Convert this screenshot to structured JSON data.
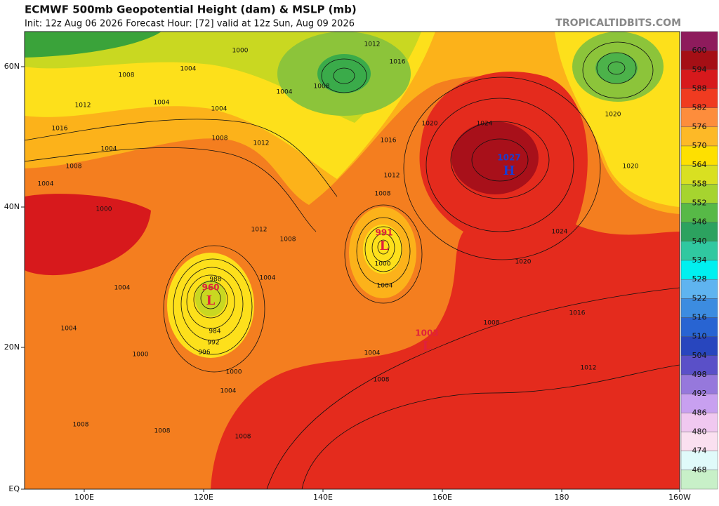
{
  "header": {
    "title": "ECMWF 500mb Geopotential Height (dam) & MSLP (mb)",
    "subtitle": "Init: 12z Aug 06 2026   Forecast Hour: [72]   valid at 12z Sun, Aug 09 2026",
    "site": "TROPICALTIDBITS.COM"
  },
  "map": {
    "lat_labels": [
      "60N",
      "40N",
      "20N",
      "EQ"
    ],
    "lon_labels": [
      "100E",
      "120E",
      "140E",
      "160E",
      "180",
      "160W"
    ],
    "centers": [
      {
        "type": "L",
        "value": "960",
        "color": "#e0203c"
      },
      {
        "type": "L",
        "value": "991",
        "color": "#e0203c"
      },
      {
        "type": "L",
        "value": "1003",
        "color": "#e0203c"
      },
      {
        "type": "H",
        "value": "1027",
        "color": "#1a3cd0"
      }
    ],
    "isobar_labels": [
      "1000",
      "1012",
      "1016",
      "1008",
      "1004",
      "1004",
      "1008",
      "1012",
      "1004",
      "1004",
      "1016",
      "1004",
      "1008",
      "1012",
      "1016",
      "1020",
      "1024",
      "1020",
      "1020",
      "1008",
      "1012",
      "1024",
      "1020",
      "1016",
      "1012",
      "1008",
      "1004",
      "1000",
      "1004",
      "1008",
      "1012",
      "1008",
      "1004",
      "988",
      "984",
      "992",
      "996",
      "1000",
      "1004",
      "1008",
      "1008",
      "1008",
      "1000",
      "1004",
      "1004",
      "1000",
      "1008",
      "1004"
    ]
  },
  "colorbar": {
    "labels": [
      600,
      594,
      588,
      582,
      576,
      570,
      564,
      558,
      552,
      546,
      540,
      534,
      528,
      522,
      516,
      510,
      504,
      498,
      492,
      486,
      480,
      474,
      468
    ],
    "colors": [
      "#8e1b5c",
      "#a50f15",
      "#d7191c",
      "#f03b20",
      "#fd8d3c",
      "#fdb927",
      "#fee000",
      "#d9e021",
      "#a6d42f",
      "#57b947",
      "#2ca25f",
      "#30c8a0",
      "#00f0f0",
      "#5fb4f0",
      "#3c8ce0",
      "#2864d2",
      "#2846be",
      "#5a50c8",
      "#9678dc",
      "#c8a0f0",
      "#f0c8f0",
      "#fae0f0",
      "#e0fafa",
      "#c8f0c8"
    ]
  }
}
